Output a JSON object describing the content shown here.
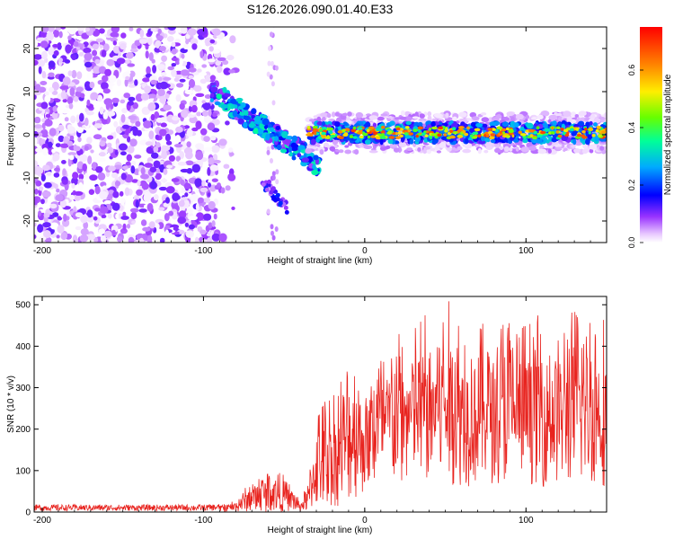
{
  "title": "S126.2026.090.01.40.E33",
  "chart_data": [
    {
      "type": "heatmap",
      "xlabel": "Height of straight line (km)",
      "ylabel": "Frequency (Hz)",
      "xlim": [
        -205,
        150
      ],
      "ylim": [
        -25,
        25
      ],
      "xticks": [
        -200,
        -100,
        0,
        100
      ],
      "yticks": [
        -20,
        -10,
        0,
        10,
        20
      ],
      "colorbar": {
        "label": "Normalized spectral amplitude",
        "range": [
          0.0,
          0.75
        ],
        "ticks": [
          "0.0",
          "0.2",
          "0.4",
          "0.6"
        ],
        "colors": [
          "#ffffff",
          "#cc66ff",
          "#7a00cc",
          "#0000ff",
          "#00c8ff",
          "#00ff80",
          "#ccff00",
          "#ffd000",
          "#ff6a00",
          "#ff0000"
        ]
      },
      "regions": [
        {
          "name": "noise",
          "x_range": [
            -205,
            -90
          ],
          "freq_range": [
            -25,
            25
          ],
          "amplitude_range": [
            0.0,
            0.12
          ]
        },
        {
          "name": "descending track",
          "x_range": [
            -95,
            -28
          ],
          "freq_start": 10,
          "freq_end": -7,
          "amplitude_range": [
            0.08,
            0.35
          ]
        },
        {
          "name": "secondary branch",
          "x_range": [
            -65,
            -48
          ],
          "freq_start": -10,
          "freq_end": -17
        },
        {
          "name": "stable line",
          "x_range": [
            -35,
            150
          ],
          "freq_center": 0.5,
          "amplitude_range": [
            0.1,
            0.7
          ]
        }
      ]
    },
    {
      "type": "line",
      "xlabel": "Height of straight line (km)",
      "ylabel": "SNR (10 * v/v)",
      "xlim": [
        -205,
        150
      ],
      "ylim": [
        0,
        520
      ],
      "xticks": [
        -200,
        -100,
        0,
        100
      ],
      "yticks": [
        0,
        100,
        200,
        300,
        400,
        500
      ],
      "color": "#e8231e",
      "series": [
        {
          "name": "SNR",
          "x": [
            -205,
            -180,
            -150,
            -120,
            -100,
            -90,
            -80,
            -70,
            -60,
            -50,
            -45,
            -40,
            -35,
            -30,
            -20,
            -10,
            0,
            10,
            20,
            30,
            40,
            50,
            60,
            70,
            80,
            90,
            100,
            110,
            120,
            130,
            140,
            150
          ],
          "envelope_upper": [
            18,
            18,
            18,
            18,
            18,
            20,
            30,
            80,
            110,
            90,
            60,
            30,
            70,
            260,
            300,
            380,
            360,
            420,
            430,
            470,
            500,
            520,
            480,
            450,
            470,
            490,
            470,
            480,
            460,
            500,
            510,
            480
          ],
          "envelope_lower": [
            0,
            0,
            0,
            0,
            0,
            0,
            0,
            0,
            0,
            0,
            0,
            0,
            0,
            0,
            10,
            20,
            40,
            50,
            60,
            60,
            60,
            70,
            60,
            60,
            70,
            60,
            70,
            60,
            60,
            60,
            60,
            60
          ]
        }
      ]
    }
  ]
}
